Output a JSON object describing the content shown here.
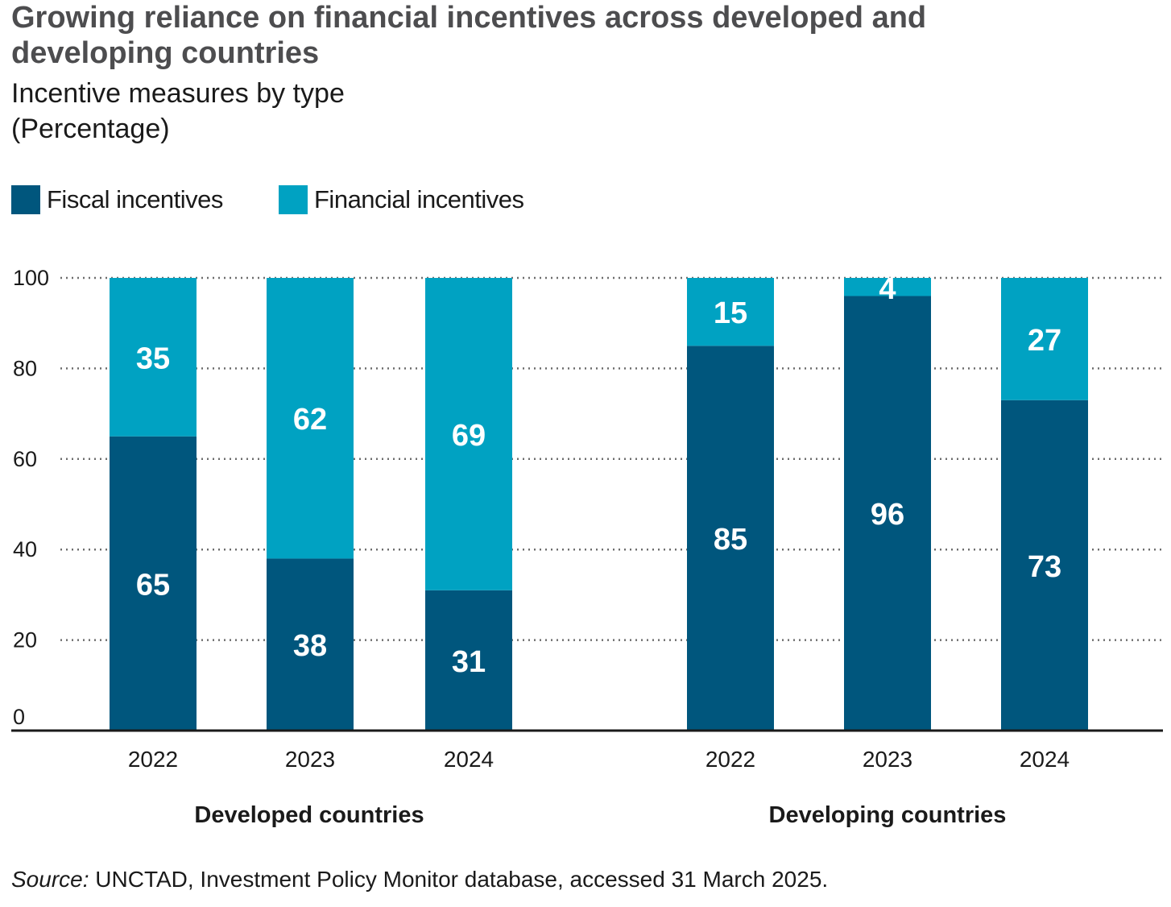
{
  "title": "Growing reliance on financial incentives across developed and developing countries",
  "subtitle": "Incentive measures by type",
  "unit_label": "(Percentage)",
  "legend": [
    {
      "label": "Fiscal incentives",
      "color": "#00567d"
    },
    {
      "label": "Financial incentives",
      "color": "#00a2c2"
    }
  ],
  "source": {
    "prefix": "Source:",
    "text": " UNCTAD, Investment Policy Monitor database, accessed 31 March 2025."
  },
  "chart_data": {
    "type": "bar",
    "stacked": true,
    "title": "Growing reliance on financial incentives across developed and developing countries",
    "ylabel": "Percentage",
    "ylim": [
      0,
      100
    ],
    "yticks": [
      0,
      20,
      40,
      60,
      80,
      100
    ],
    "grid": true,
    "groups": [
      {
        "name": "Developed countries",
        "categories": [
          "2022",
          "2023",
          "2024"
        ]
      },
      {
        "name": "Developing countries",
        "categories": [
          "2022",
          "2023",
          "2024"
        ]
      }
    ],
    "series": [
      {
        "name": "Fiscal incentives",
        "color": "#00567d",
        "values": [
          [
            65,
            38,
            31
          ],
          [
            85,
            96,
            73
          ]
        ]
      },
      {
        "name": "Financial incentives",
        "color": "#00a2c2",
        "values": [
          [
            35,
            62,
            69
          ],
          [
            15,
            4,
            27
          ]
        ]
      }
    ]
  }
}
